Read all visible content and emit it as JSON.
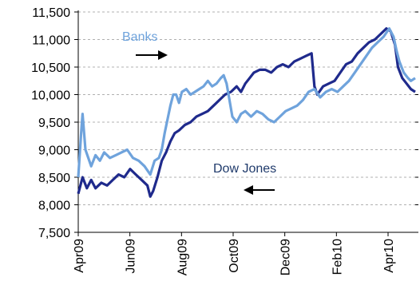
{
  "chart_data": {
    "type": "line",
    "title": "",
    "xlabel": "",
    "ylabel": "",
    "ylim": [
      7500,
      11500
    ],
    "y_ticks": [
      "7,500",
      "8,000",
      "8,500",
      "9,000",
      "9,500",
      "10,000",
      "10,500",
      "11,000",
      "11,500"
    ],
    "x_ticks": [
      "Apr09",
      "Jun09",
      "Aug09",
      "Oct09",
      "Dec09",
      "Feb10",
      "Apr10"
    ],
    "grid": "horizontal dashed",
    "annotations": [
      {
        "text": "Banks",
        "arrow": "right"
      },
      {
        "text": "Dow Jones",
        "arrow": "left"
      }
    ],
    "colors": {
      "banks": "#6fa3dc",
      "dow": "#1f2a8c"
    },
    "series": [
      {
        "key": "dow",
        "points": [
          [
            0,
            8200
          ],
          [
            3,
            8500
          ],
          [
            6,
            8300
          ],
          [
            9,
            8450
          ],
          [
            12,
            8300
          ],
          [
            16,
            8400
          ],
          [
            20,
            8350
          ],
          [
            24,
            8450
          ],
          [
            28,
            8550
          ],
          [
            32,
            8500
          ],
          [
            36,
            8650
          ],
          [
            40,
            8550
          ],
          [
            44,
            8450
          ],
          [
            48,
            8350
          ],
          [
            50,
            8150
          ],
          [
            52,
            8250
          ],
          [
            55,
            8500
          ],
          [
            58,
            8800
          ],
          [
            61,
            8950
          ],
          [
            64,
            9150
          ],
          [
            67,
            9300
          ],
          [
            70,
            9350
          ],
          [
            74,
            9450
          ],
          [
            78,
            9500
          ],
          [
            82,
            9600
          ],
          [
            86,
            9650
          ],
          [
            90,
            9700
          ],
          [
            94,
            9800
          ],
          [
            98,
            9900
          ],
          [
            102,
            10000
          ],
          [
            106,
            10050
          ],
          [
            110,
            10150
          ],
          [
            113,
            10050
          ],
          [
            116,
            10200
          ],
          [
            119,
            10300
          ],
          [
            122,
            10400
          ],
          [
            126,
            10450
          ],
          [
            130,
            10450
          ],
          [
            134,
            10400
          ],
          [
            138,
            10500
          ],
          [
            142,
            10550
          ],
          [
            146,
            10500
          ],
          [
            150,
            10600
          ],
          [
            154,
            10650
          ],
          [
            158,
            10700
          ],
          [
            162,
            10750
          ],
          [
            164,
            10150
          ],
          [
            166,
            10000
          ],
          [
            170,
            10150
          ],
          [
            174,
            10200
          ],
          [
            178,
            10250
          ],
          [
            182,
            10400
          ],
          [
            186,
            10550
          ],
          [
            190,
            10600
          ],
          [
            194,
            10750
          ],
          [
            198,
            10850
          ],
          [
            202,
            10950
          ],
          [
            206,
            11000
          ],
          [
            210,
            11100
          ],
          [
            214,
            11200
          ],
          [
            217,
            11150
          ],
          [
            220,
            10900
          ],
          [
            222,
            10500
          ],
          [
            225,
            10300
          ],
          [
            228,
            10200
          ],
          [
            231,
            10100
          ],
          [
            234,
            10050
          ]
        ]
      },
      {
        "key": "banks",
        "points": [
          [
            0,
            8500
          ],
          [
            2,
            9300
          ],
          [
            3,
            9650
          ],
          [
            5,
            9000
          ],
          [
            7,
            8850
          ],
          [
            9,
            8700
          ],
          [
            12,
            8900
          ],
          [
            15,
            8800
          ],
          [
            18,
            8950
          ],
          [
            22,
            8850
          ],
          [
            26,
            8900
          ],
          [
            30,
            8950
          ],
          [
            34,
            9000
          ],
          [
            38,
            8850
          ],
          [
            42,
            8800
          ],
          [
            46,
            8700
          ],
          [
            50,
            8550
          ],
          [
            53,
            8800
          ],
          [
            56,
            8850
          ],
          [
            58,
            9000
          ],
          [
            60,
            9300
          ],
          [
            62,
            9550
          ],
          [
            64,
            9800
          ],
          [
            66,
            10000
          ],
          [
            68,
            10000
          ],
          [
            70,
            9850
          ],
          [
            72,
            10050
          ],
          [
            75,
            10100
          ],
          [
            78,
            10000
          ],
          [
            81,
            10050
          ],
          [
            84,
            10100
          ],
          [
            87,
            10150
          ],
          [
            90,
            10250
          ],
          [
            93,
            10150
          ],
          [
            96,
            10200
          ],
          [
            99,
            10300
          ],
          [
            101,
            10350
          ],
          [
            103,
            10200
          ],
          [
            105,
            9900
          ],
          [
            107,
            9600
          ],
          [
            110,
            9500
          ],
          [
            113,
            9650
          ],
          [
            116,
            9700
          ],
          [
            120,
            9600
          ],
          [
            124,
            9700
          ],
          [
            128,
            9650
          ],
          [
            132,
            9550
          ],
          [
            136,
            9500
          ],
          [
            140,
            9600
          ],
          [
            144,
            9700
          ],
          [
            148,
            9750
          ],
          [
            152,
            9800
          ],
          [
            156,
            9900
          ],
          [
            160,
            10050
          ],
          [
            164,
            10100
          ],
          [
            168,
            9950
          ],
          [
            172,
            10050
          ],
          [
            176,
            10100
          ],
          [
            180,
            10050
          ],
          [
            184,
            10150
          ],
          [
            188,
            10250
          ],
          [
            192,
            10400
          ],
          [
            196,
            10550
          ],
          [
            200,
            10700
          ],
          [
            204,
            10850
          ],
          [
            208,
            10950
          ],
          [
            212,
            11050
          ],
          [
            216,
            11200
          ],
          [
            219,
            11050
          ],
          [
            221,
            10800
          ],
          [
            223,
            10600
          ],
          [
            226,
            10400
          ],
          [
            229,
            10300
          ],
          [
            231,
            10250
          ],
          [
            234,
            10300
          ]
        ]
      }
    ]
  }
}
